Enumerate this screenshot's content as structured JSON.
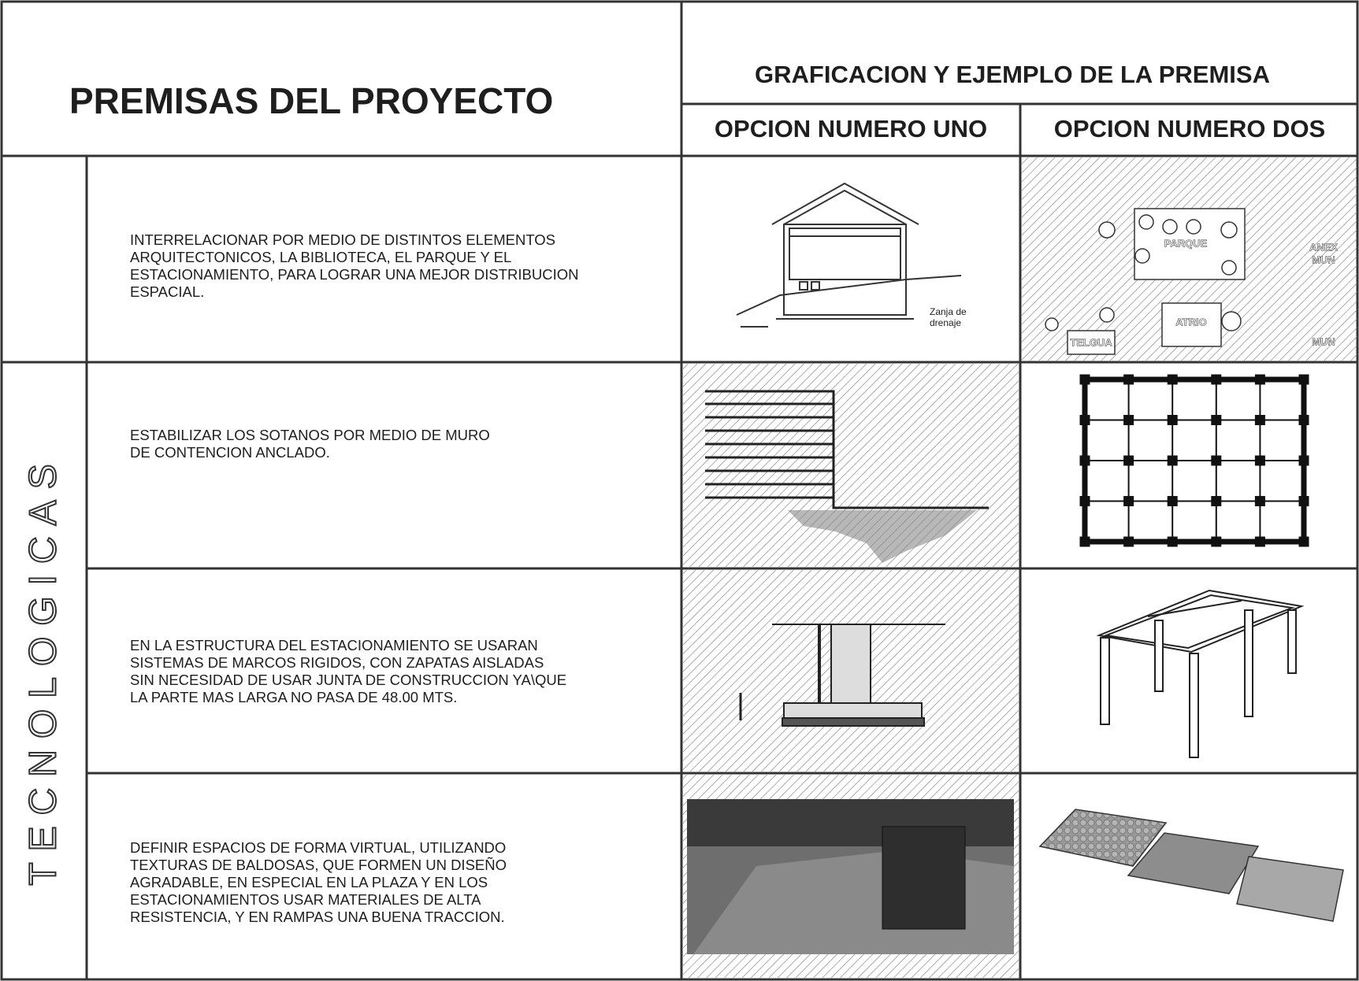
{
  "header": {
    "title": "PREMISAS DEL PROYECTO",
    "graphic_title": "GRAFICACION Y EJEMPLO DE LA PREMISA",
    "option_one": "OPCION NUMERO UNO",
    "option_two": "OPCION NUMERO DOS"
  },
  "category": "TECNOLOGICAS",
  "rows": [
    {
      "lines": [
        "INTERRELACIONAR POR MEDIO DE DISTINTOS ELEMENTOS",
        "ARQUITECTONICOS, LA BIBLIOTECA, EL PARQUE Y EL",
        "ESTACIONAMIENTO, PARA LOGRAR UNA MEJOR DISTRIBUCION",
        "ESPACIAL."
      ],
      "option_one_labels": [
        "Zanja de",
        "drenaje"
      ],
      "option_two_labels": [
        "PARQUE",
        "ATRIO",
        "TELGUA",
        "ANEX",
        "MUN",
        "MUN"
      ]
    },
    {
      "lines": [
        "ESTABILIZAR LOS SOTANOS POR MEDIO DE MURO",
        "DE CONTENCION ANCLADO."
      ]
    },
    {
      "lines": [
        "EN LA ESTRUCTURA DEL ESTACIONAMIENTO SE USARAN",
        "SISTEMAS DE MARCOS RIGIDOS, CON ZAPATAS AISLADAS",
        "SIN NECESIDAD DE USAR JUNTA DE CONSTRUCCION YA\\QUE",
        "LA PARTE MAS LARGA NO PASA DE 48.00 MTS."
      ]
    },
    {
      "lines": [
        "DEFINIR ESPACIOS DE FORMA VIRTUAL, UTILIZANDO",
        "TEXTURAS DE BALDOSAS, QUE FORMEN UN DISEÑO",
        "AGRADABLE, EN ESPECIAL EN LA PLAZA Y EN LOS",
        "ESTACIONAMIENTOS USAR MATERIALES DE ALTA",
        "RESISTENCIA, Y EN RAMPAS UNA BUENA TRACCION."
      ]
    }
  ]
}
